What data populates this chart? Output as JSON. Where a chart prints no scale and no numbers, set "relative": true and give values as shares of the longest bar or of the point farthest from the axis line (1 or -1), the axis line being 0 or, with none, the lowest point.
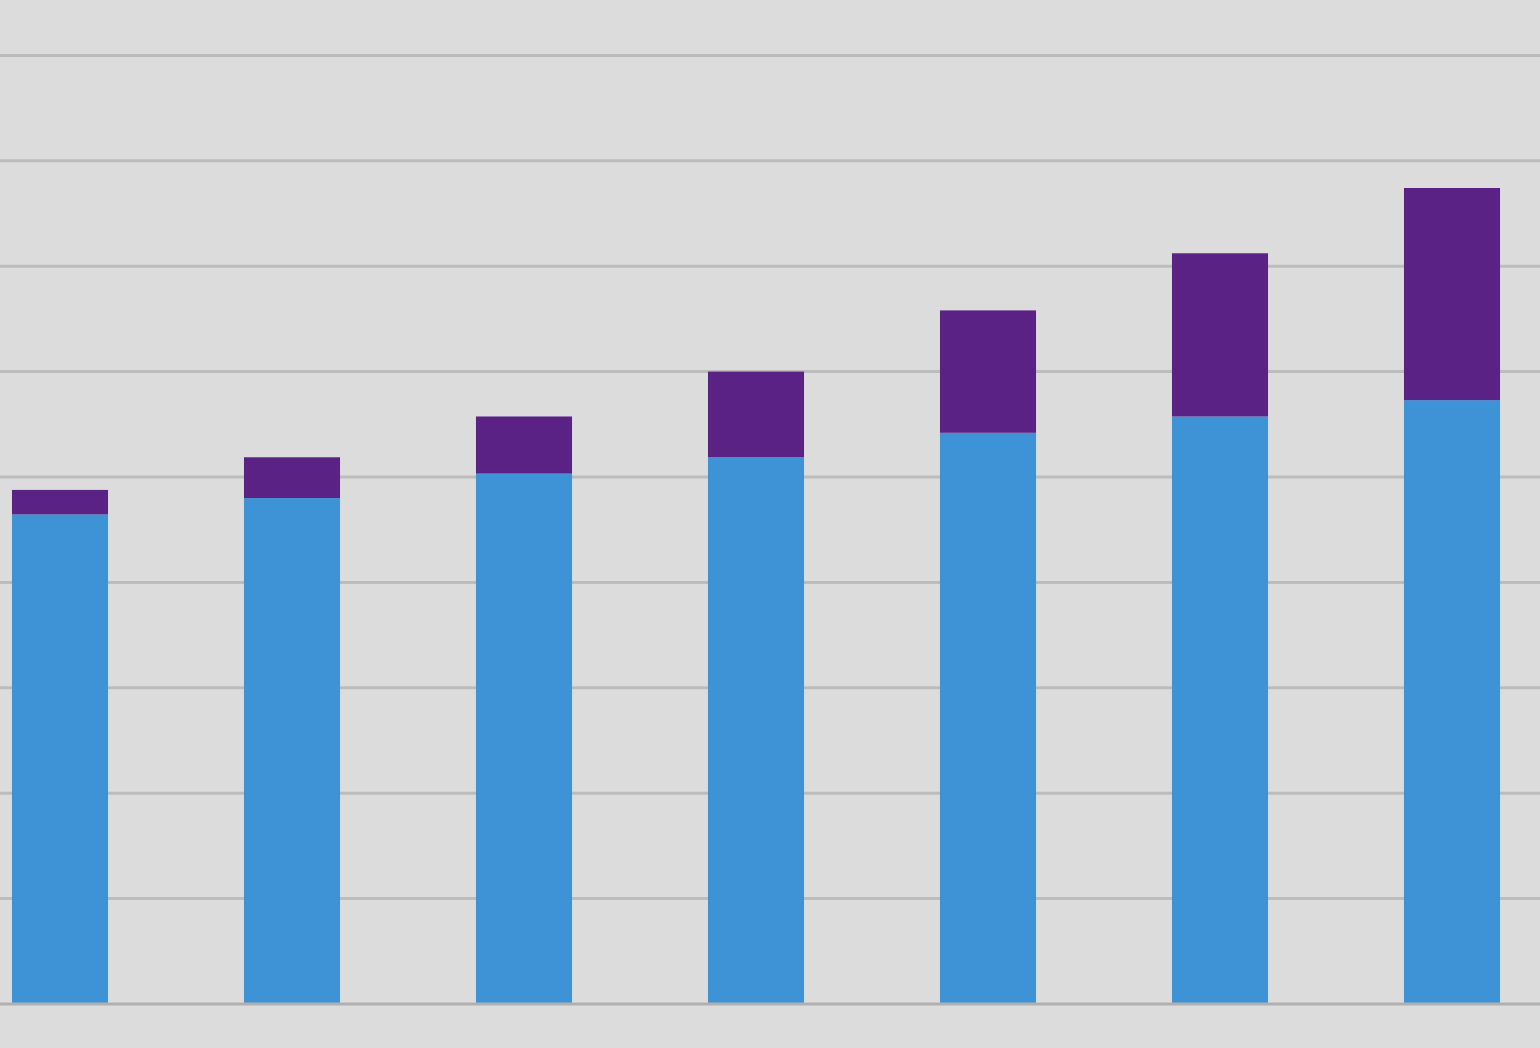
{
  "chart_data": {
    "type": "bar",
    "relative": true,
    "stacked": true,
    "grid": true,
    "categories": [
      null,
      null,
      null,
      null,
      null,
      null,
      null
    ],
    "series": [
      {
        "color": "#3d93d5",
        "values": [
          0.6,
          0.62,
          0.65,
          0.67,
          0.7,
          0.72,
          0.74
        ]
      },
      {
        "color": "#5b2286",
        "values": [
          0.03,
          0.05,
          0.07,
          0.105,
          0.15,
          0.2,
          0.26
        ]
      }
    ]
  }
}
